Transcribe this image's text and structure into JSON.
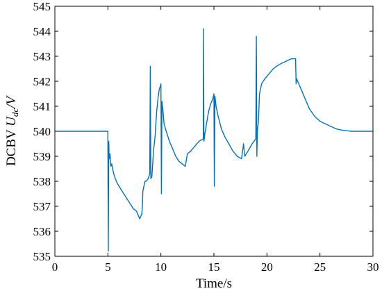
{
  "chart_data": {
    "type": "line",
    "xlabel": "Time/s",
    "ylabel": {
      "prefix": "DCBV ",
      "symbol": "U",
      "subscript": "dc",
      "suffix": "/V"
    },
    "xlim": [
      0,
      30
    ],
    "ylim": [
      535,
      545
    ],
    "xticks": [
      0,
      5,
      10,
      15,
      20,
      25,
      30
    ],
    "yticks": [
      535,
      536,
      537,
      538,
      539,
      540,
      541,
      542,
      543,
      544,
      545
    ],
    "grid": false,
    "line_color": "#0072BD",
    "series": [
      {
        "x": [
          0,
          5.0,
          5.04,
          5.08,
          5.12,
          5.2,
          5.28,
          5.36,
          5.44,
          5.55,
          5.7,
          5.9,
          6.2,
          6.5,
          6.8,
          7.1,
          7.4,
          7.7,
          7.9,
          8.0,
          8.1,
          8.2,
          8.25,
          8.3,
          8.4,
          8.5,
          8.6,
          8.8,
          8.95,
          9.0,
          9.05,
          9.15,
          9.3,
          9.45,
          9.6,
          9.75,
          9.85,
          9.95,
          10.0,
          10.05,
          10.1,
          10.2,
          10.3,
          10.5,
          10.8,
          11.1,
          11.4,
          11.7,
          12.0,
          12.3,
          12.5,
          12.8,
          13.2,
          13.6,
          14.0,
          14.02,
          14.06,
          14.15,
          14.3,
          14.5,
          14.7,
          14.9,
          15.0,
          15.04,
          15.1,
          15.2,
          15.4,
          15.7,
          16.0,
          16.4,
          16.8,
          17.2,
          17.6,
          17.8,
          17.9,
          18.2,
          18.6,
          18.95,
          19.0,
          19.05,
          19.1,
          19.2,
          19.3,
          19.5,
          19.8,
          20.2,
          20.6,
          20.9,
          21.3,
          21.8,
          22.3,
          22.7,
          22.75,
          22.8,
          22.9,
          23.2,
          23.6,
          24.0,
          24.5,
          25.0,
          25.5,
          26.0,
          26.5,
          27.0,
          27.5,
          28.0,
          28.5,
          29.0,
          29.5,
          30.0
        ],
        "y": [
          540.0,
          540.0,
          535.2,
          539.6,
          538.9,
          539.1,
          538.6,
          538.7,
          538.5,
          538.3,
          538.1,
          537.9,
          537.7,
          537.5,
          537.3,
          537.1,
          536.9,
          536.8,
          536.6,
          536.5,
          536.6,
          536.7,
          537.0,
          537.6,
          537.8,
          538.0,
          538.0,
          538.1,
          538.3,
          542.6,
          538.1,
          538.2,
          539.2,
          539.8,
          540.8,
          541.4,
          541.7,
          541.8,
          541.9,
          537.5,
          541.2,
          540.8,
          540.3,
          540.0,
          539.6,
          539.3,
          539.0,
          538.8,
          538.7,
          538.6,
          539.1,
          539.2,
          539.4,
          539.6,
          539.7,
          544.1,
          539.6,
          539.9,
          540.3,
          540.8,
          541.1,
          541.3,
          541.5,
          537.8,
          541.4,
          541.0,
          540.6,
          540.1,
          539.8,
          539.5,
          539.2,
          539.0,
          538.9,
          539.5,
          539.0,
          539.2,
          539.5,
          539.7,
          543.8,
          539.0,
          540.0,
          540.4,
          541.5,
          541.9,
          542.1,
          542.3,
          542.5,
          542.6,
          542.7,
          542.8,
          542.9,
          542.9,
          541.9,
          542.1,
          542.0,
          541.7,
          541.3,
          540.9,
          540.6,
          540.4,
          540.3,
          540.2,
          540.1,
          540.05,
          540.02,
          540.0,
          540.0,
          540.0,
          540.0,
          540.0
        ]
      }
    ]
  }
}
